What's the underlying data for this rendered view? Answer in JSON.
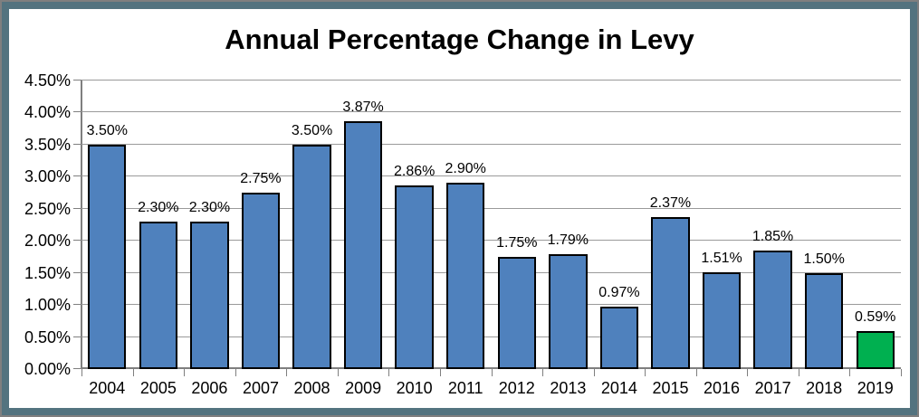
{
  "frame": {
    "border_color": "#53737f",
    "outer_line_color": "#7f7f7f"
  },
  "title": "Annual Percentage Change in Levy",
  "chart_data": {
    "type": "bar",
    "title": "Annual Percentage Change in Levy",
    "categories": [
      "2004",
      "2005",
      "2006",
      "2007",
      "2008",
      "2009",
      "2010",
      "2011",
      "2012",
      "2013",
      "2014",
      "2015",
      "2016",
      "2017",
      "2018",
      "2019"
    ],
    "values": [
      3.5,
      2.3,
      2.3,
      2.75,
      3.5,
      3.87,
      2.86,
      2.9,
      1.75,
      1.79,
      0.97,
      2.37,
      1.51,
      1.85,
      1.5,
      0.59
    ],
    "data_labels": [
      "3.50%",
      "2.30%",
      "2.30%",
      "2.75%",
      "3.50%",
      "3.87%",
      "2.86%",
      "2.90%",
      "1.75%",
      "1.79%",
      "0.97%",
      "2.37%",
      "1.51%",
      "1.85%",
      "1.50%",
      "0.59%"
    ],
    "y_ticks": [
      "0.00%",
      "0.50%",
      "1.00%",
      "1.50%",
      "2.00%",
      "2.50%",
      "3.00%",
      "3.50%",
      "4.00%",
      "4.50%"
    ],
    "ylim": [
      0,
      4.5
    ],
    "xlabel": "",
    "ylabel": "",
    "grid": true,
    "legend": "none",
    "bar_color": "#4f81bd",
    "highlight_index": 15,
    "highlight_color": "#00b050",
    "bar_border_color": "#000000",
    "gridline_color": "#9a9a9a",
    "axis_color": "#7f7f7f"
  }
}
